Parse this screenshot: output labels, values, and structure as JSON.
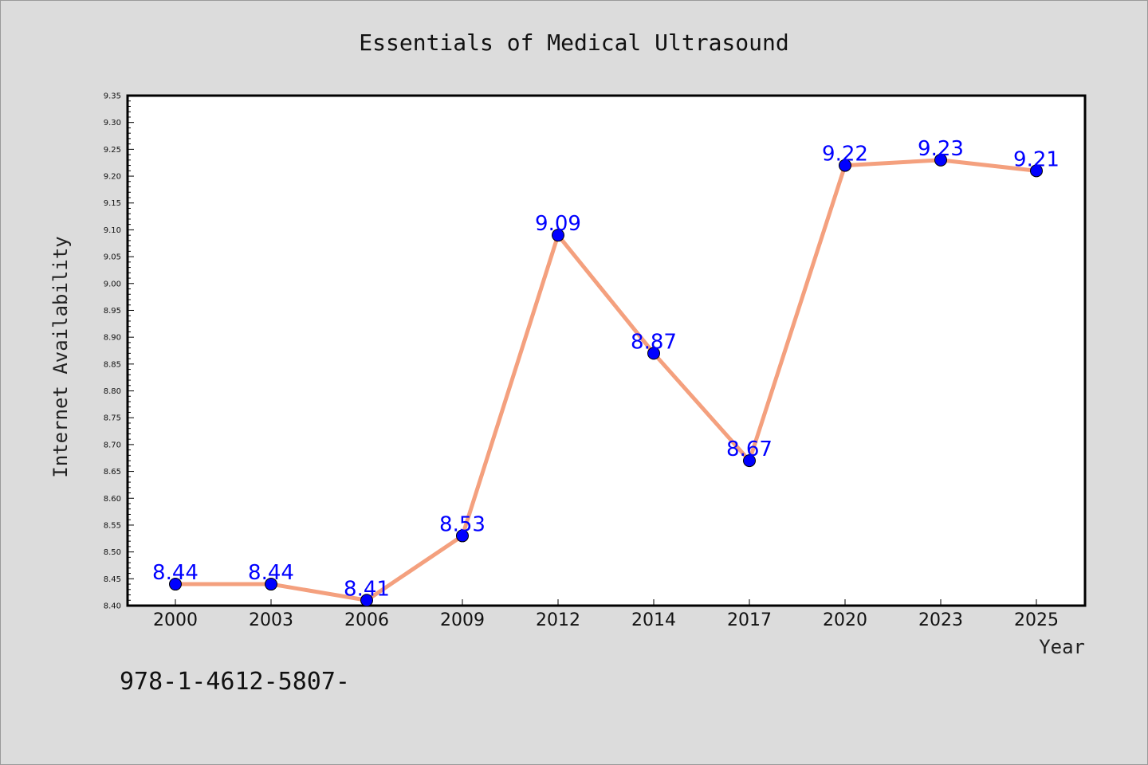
{
  "chart_data": {
    "type": "line",
    "title": "Essentials of Medical Ultrasound",
    "xlabel": "Year",
    "ylabel": "Internet Availability",
    "categories": [
      "2000",
      "2003",
      "2006",
      "2009",
      "2012",
      "2014",
      "2017",
      "2020",
      "2023",
      "2025"
    ],
    "series": [
      {
        "values": [
          8.44,
          8.44,
          8.41,
          8.53,
          9.09,
          8.87,
          8.67,
          9.22,
          9.23,
          9.21
        ]
      }
    ],
    "data_labels": [
      "8.44",
      "8.44",
      "8.41",
      "8.53",
      "9.09",
      "8.87",
      "8.67",
      "9.22",
      "9.23",
      "9.21"
    ],
    "ylim": [
      8.4,
      9.35
    ],
    "y_ticks": [
      "8.40",
      "8.45",
      "8.50",
      "8.55",
      "8.60",
      "8.65",
      "8.70",
      "8.75",
      "8.80",
      "8.85",
      "8.90",
      "8.95",
      "9.00",
      "9.05",
      "9.10",
      "9.15",
      "9.20",
      "9.25",
      "9.30",
      "9.35"
    ],
    "grid": false,
    "colors": {
      "line": "#f4a07e",
      "marker": "#0000ff",
      "label": "#0000ff",
      "plot_bg": "#ffffff",
      "figure_bg": "#dcdcdc"
    }
  },
  "footer": {
    "isbn": "978-1-4612-5807-"
  }
}
